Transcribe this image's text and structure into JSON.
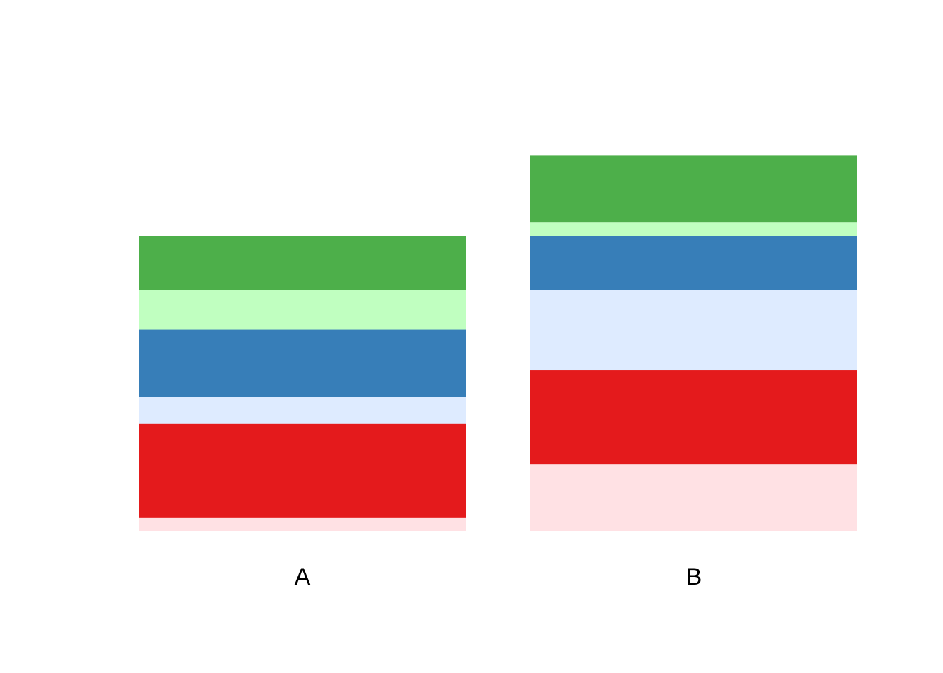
{
  "chart_data": {
    "type": "bar",
    "stacked": true,
    "title": "",
    "xlabel": "",
    "ylabel": "",
    "axes_visible": false,
    "grid": false,
    "legend": "none",
    "ylim": [
      0,
      33.5
    ],
    "categories": [
      "A",
      "B"
    ],
    "series": [
      {
        "color": "#FFE1E4",
        "values": [
          1,
          5
        ]
      },
      {
        "color": "#E41A1C",
        "values": [
          7,
          7
        ]
      },
      {
        "color": "#DEEBFF",
        "values": [
          2,
          6
        ]
      },
      {
        "color": "#377EB8",
        "values": [
          5,
          4
        ]
      },
      {
        "color": "#C0FFC0",
        "values": [
          3,
          1
        ]
      },
      {
        "color": "#4DAF4A",
        "values": [
          4,
          5
        ]
      }
    ]
  }
}
